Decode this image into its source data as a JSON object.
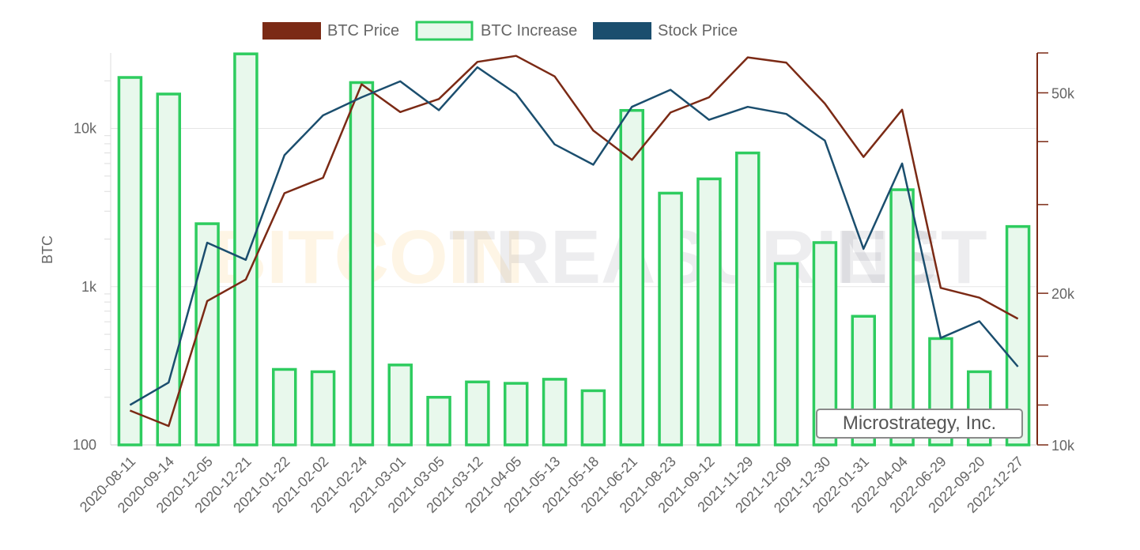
{
  "company_label": "Microstrategy, Inc.",
  "watermark": {
    "part1": "BITCOIN",
    "part2": "TREASURIES",
    "part3": ".NET"
  },
  "colors": {
    "btc_price": "#7b2a15",
    "btc_increase_stroke": "#2ecc5f",
    "btc_increase_fill": "#e8f8ec",
    "stock_price": "#1b4e6e",
    "grid": "#e6e6e6",
    "axis_text": "#666666"
  },
  "chart_data": {
    "type": "bar",
    "categories": [
      "2020-08-11",
      "2020-09-14",
      "2020-12-05",
      "2020-12-21",
      "2021-01-22",
      "2021-02-02",
      "2021-02-24",
      "2021-03-01",
      "2021-03-05",
      "2021-03-12",
      "2021-04-05",
      "2021-05-13",
      "2021-05-18",
      "2021-06-21",
      "2021-08-23",
      "2021-09-12",
      "2021-11-29",
      "2021-12-09",
      "2021-12-30",
      "2022-01-31",
      "2022-04-04",
      "2022-06-29",
      "2022-09-20",
      "2022-12-27"
    ],
    "legend": [
      "BTC Price",
      "BTC Increase",
      "Stock Price"
    ],
    "legend_position": "top",
    "y_left": {
      "label": "BTC",
      "scale": "log",
      "range": [
        100,
        30000
      ],
      "ticks": [
        100,
        1000,
        10000
      ],
      "tick_labels": [
        "100",
        "1k",
        "10k"
      ]
    },
    "y_right": {
      "scale": "log",
      "range": [
        10000,
        60000
      ],
      "tick_labels": [
        "10k",
        "20k",
        "50k"
      ],
      "tick_values": [
        10000,
        20000,
        50000
      ]
    },
    "series": [
      {
        "name": "BTC Increase",
        "type": "bar",
        "axis": "left",
        "values": [
          21000,
          16500,
          2500,
          29600,
          300,
          290,
          19500,
          320,
          200,
          250,
          245,
          260,
          220,
          13000,
          3900,
          4800,
          7000,
          1400,
          1900,
          650,
          4100,
          470,
          290,
          2400
        ]
      },
      {
        "name": "BTC Price",
        "type": "line",
        "axis": "right",
        "values": [
          11700,
          10900,
          19300,
          21300,
          31600,
          33900,
          52000,
          45800,
          48600,
          57600,
          59200,
          53900,
          42100,
          36800,
          45700,
          49000,
          58800,
          57400,
          47600,
          37300,
          46300,
          20500,
          19600,
          17800
        ]
      },
      {
        "name": "Stock Price",
        "type": "line",
        "axis": "right",
        "values": [
          12000,
          13300,
          25200,
          23300,
          37600,
          45100,
          49000,
          52700,
          46200,
          56200,
          49800,
          39500,
          36000,
          46900,
          50700,
          44200,
          46900,
          45400,
          40200,
          24500,
          36200,
          16300,
          17600,
          14300
        ]
      }
    ]
  }
}
